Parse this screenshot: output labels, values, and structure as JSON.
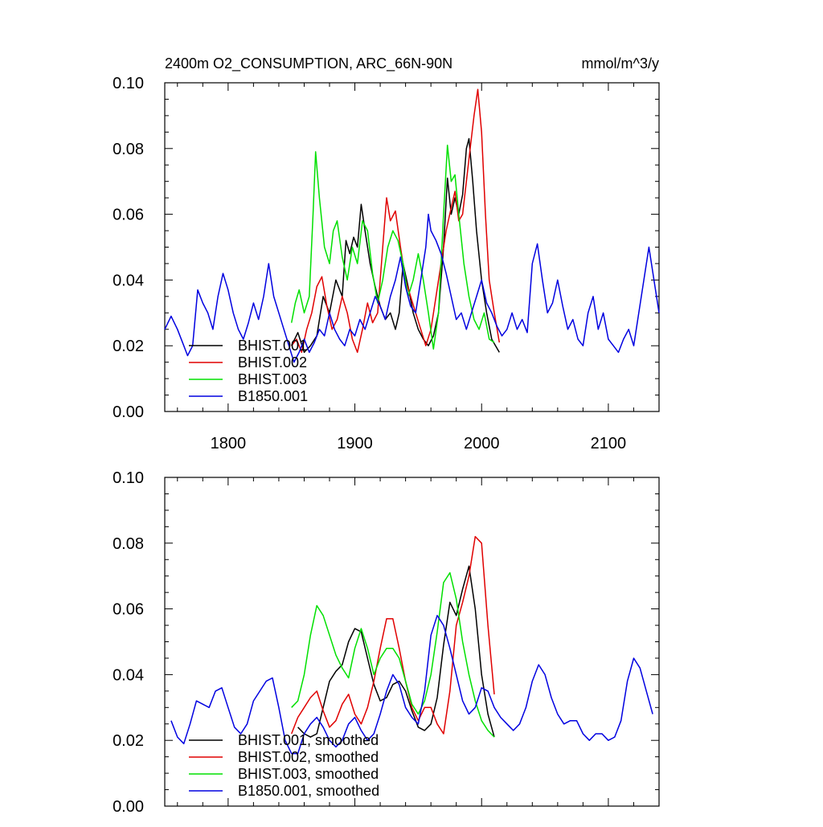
{
  "chart_data": [
    {
      "type": "line",
      "title": "2400m O2_CONSUMPTION, ARC_66N-90N",
      "units": "mmol/m^3/y",
      "xlim": [
        1750,
        2140
      ],
      "ylim": [
        0,
        0.1
      ],
      "xticks": [
        1800,
        1900,
        2000,
        2100
      ],
      "xtick_labels": [
        "1800",
        "1900",
        "2000",
        "2100"
      ],
      "yticks": [
        0,
        0.02,
        0.04,
        0.06,
        0.08,
        0.1
      ],
      "ytick_labels": [
        "0.00",
        "0.02",
        "0.04",
        "0.06",
        "0.08",
        "0.10"
      ],
      "legend_position": "bottom-left",
      "series": [
        {
          "name": "BHIST.001",
          "color": "#000000",
          "x": [
            1850,
            1855,
            1860,
            1865,
            1870,
            1875,
            1880,
            1885,
            1890,
            1893,
            1896,
            1899,
            1902,
            1905,
            1908,
            1912,
            1916,
            1920,
            1924,
            1928,
            1932,
            1935,
            1938,
            1942,
            1946,
            1950,
            1954,
            1958,
            1962,
            1966,
            1970,
            1973,
            1976,
            1979,
            1982,
            1985,
            1988,
            1990,
            1993,
            1996,
            2000,
            2004,
            2008,
            2014
          ],
          "y": [
            0.02,
            0.024,
            0.018,
            0.02,
            0.023,
            0.035,
            0.03,
            0.04,
            0.035,
            0.052,
            0.048,
            0.053,
            0.05,
            0.063,
            0.055,
            0.045,
            0.038,
            0.032,
            0.028,
            0.03,
            0.025,
            0.03,
            0.045,
            0.038,
            0.03,
            0.025,
            0.022,
            0.02,
            0.023,
            0.03,
            0.05,
            0.071,
            0.06,
            0.065,
            0.06,
            0.066,
            0.08,
            0.083,
            0.07,
            0.055,
            0.04,
            0.03,
            0.022,
            0.018
          ]
        },
        {
          "name": "BHIST.002",
          "color": "#e00000",
          "x": [
            1850,
            1854,
            1858,
            1862,
            1866,
            1870,
            1874,
            1878,
            1882,
            1886,
            1890,
            1894,
            1898,
            1902,
            1906,
            1910,
            1914,
            1918,
            1922,
            1925,
            1928,
            1932,
            1936,
            1940,
            1944,
            1948,
            1952,
            1956,
            1960,
            1964,
            1968,
            1972,
            1976,
            1979,
            1982,
            1985,
            1988,
            1991,
            1994,
            1997,
            2000,
            2003,
            2006,
            2010,
            2014
          ],
          "y": [
            0.02,
            0.022,
            0.018,
            0.025,
            0.03,
            0.038,
            0.041,
            0.032,
            0.025,
            0.028,
            0.035,
            0.03,
            0.022,
            0.018,
            0.025,
            0.033,
            0.027,
            0.03,
            0.05,
            0.065,
            0.058,
            0.061,
            0.05,
            0.04,
            0.035,
            0.03,
            0.025,
            0.02,
            0.025,
            0.035,
            0.045,
            0.055,
            0.062,
            0.067,
            0.058,
            0.06,
            0.07,
            0.08,
            0.09,
            0.098,
            0.085,
            0.06,
            0.04,
            0.03,
            0.021
          ]
        },
        {
          "name": "BHIST.003",
          "color": "#00e000",
          "x": [
            1850,
            1853,
            1856,
            1860,
            1864,
            1867,
            1869,
            1872,
            1876,
            1880,
            1883,
            1886,
            1890,
            1894,
            1898,
            1902,
            1906,
            1910,
            1914,
            1918,
            1922,
            1926,
            1930,
            1934,
            1938,
            1942,
            1946,
            1950,
            1954,
            1958,
            1962,
            1966,
            1970,
            1973,
            1976,
            1979,
            1982,
            1986,
            1990,
            1994,
            1998,
            2002,
            2006,
            2010
          ],
          "y": [
            0.027,
            0.033,
            0.037,
            0.03,
            0.035,
            0.06,
            0.079,
            0.065,
            0.05,
            0.045,
            0.055,
            0.058,
            0.047,
            0.04,
            0.05,
            0.045,
            0.058,
            0.055,
            0.042,
            0.033,
            0.04,
            0.05,
            0.055,
            0.052,
            0.045,
            0.035,
            0.04,
            0.048,
            0.04,
            0.03,
            0.019,
            0.03,
            0.06,
            0.081,
            0.07,
            0.072,
            0.06,
            0.045,
            0.035,
            0.028,
            0.025,
            0.03,
            0.022,
            0.021
          ]
        },
        {
          "name": "B1850.001",
          "color": "#0000e0",
          "x": [
            1750,
            1755,
            1760,
            1765,
            1768,
            1772,
            1776,
            1780,
            1784,
            1788,
            1792,
            1796,
            1800,
            1804,
            1808,
            1812,
            1816,
            1820,
            1824,
            1828,
            1832,
            1836,
            1840,
            1844,
            1848,
            1852,
            1856,
            1860,
            1864,
            1868,
            1872,
            1876,
            1880,
            1884,
            1888,
            1892,
            1896,
            1900,
            1904,
            1908,
            1912,
            1916,
            1920,
            1924,
            1928,
            1932,
            1936,
            1940,
            1944,
            1948,
            1952,
            1956,
            1958,
            1960,
            1964,
            1968,
            1972,
            1976,
            1980,
            1984,
            1988,
            1992,
            1996,
            2000,
            2004,
            2008,
            2012,
            2016,
            2020,
            2024,
            2028,
            2032,
            2036,
            2040,
            2044,
            2048,
            2052,
            2056,
            2060,
            2064,
            2068,
            2072,
            2076,
            2080,
            2084,
            2088,
            2092,
            2096,
            2100,
            2104,
            2108,
            2112,
            2116,
            2120,
            2124,
            2128,
            2132,
            2136,
            2140
          ],
          "y": [
            0.025,
            0.029,
            0.025,
            0.02,
            0.017,
            0.02,
            0.037,
            0.033,
            0.03,
            0.025,
            0.035,
            0.042,
            0.037,
            0.03,
            0.025,
            0.022,
            0.027,
            0.033,
            0.028,
            0.035,
            0.045,
            0.035,
            0.03,
            0.025,
            0.02,
            0.015,
            0.018,
            0.022,
            0.018,
            0.021,
            0.025,
            0.023,
            0.03,
            0.025,
            0.022,
            0.02,
            0.025,
            0.023,
            0.028,
            0.025,
            0.03,
            0.035,
            0.032,
            0.028,
            0.035,
            0.04,
            0.047,
            0.038,
            0.032,
            0.03,
            0.04,
            0.05,
            0.06,
            0.055,
            0.052,
            0.048,
            0.042,
            0.035,
            0.028,
            0.03,
            0.025,
            0.03,
            0.035,
            0.04,
            0.033,
            0.03,
            0.026,
            0.023,
            0.025,
            0.03,
            0.025,
            0.028,
            0.024,
            0.045,
            0.051,
            0.04,
            0.03,
            0.033,
            0.04,
            0.032,
            0.025,
            0.028,
            0.022,
            0.02,
            0.03,
            0.035,
            0.025,
            0.03,
            0.022,
            0.02,
            0.018,
            0.022,
            0.025,
            0.02,
            0.03,
            0.04,
            0.05,
            0.04,
            0.03
          ]
        }
      ]
    },
    {
      "type": "line",
      "title": "",
      "xlim": [
        1750,
        2140
      ],
      "ylim": [
        0,
        0.1
      ],
      "xticks": [
        1800,
        1900,
        2000,
        2100
      ],
      "xtick_labels": [
        "",
        "",
        "",
        ""
      ],
      "yticks": [
        0,
        0.02,
        0.04,
        0.06,
        0.08,
        0.1
      ],
      "ytick_labels": [
        "0.00",
        "0.02",
        "0.04",
        "0.06",
        "0.08",
        "0.10"
      ],
      "legend_position": "bottom-left",
      "series": [
        {
          "name": "BHIST.001, smoothed",
          "color": "#000000",
          "x": [
            1855,
            1860,
            1865,
            1870,
            1875,
            1880,
            1885,
            1890,
            1895,
            1900,
            1905,
            1910,
            1915,
            1920,
            1925,
            1930,
            1935,
            1940,
            1945,
            1950,
            1955,
            1960,
            1965,
            1970,
            1975,
            1980,
            1985,
            1990,
            1995,
            2000,
            2005,
            2010
          ],
          "y": [
            0.024,
            0.022,
            0.021,
            0.022,
            0.03,
            0.038,
            0.041,
            0.043,
            0.05,
            0.054,
            0.053,
            0.045,
            0.037,
            0.032,
            0.033,
            0.037,
            0.038,
            0.035,
            0.029,
            0.024,
            0.023,
            0.025,
            0.033,
            0.049,
            0.062,
            0.058,
            0.066,
            0.073,
            0.06,
            0.04,
            0.028,
            0.021
          ]
        },
        {
          "name": "BHIST.002, smoothed",
          "color": "#e00000",
          "x": [
            1850,
            1855,
            1860,
            1865,
            1870,
            1875,
            1880,
            1885,
            1890,
            1895,
            1900,
            1905,
            1910,
            1915,
            1920,
            1925,
            1930,
            1935,
            1940,
            1945,
            1950,
            1955,
            1960,
            1965,
            1970,
            1975,
            1980,
            1985,
            1990,
            1995,
            2000,
            2005,
            2010
          ],
          "y": [
            0.022,
            0.027,
            0.03,
            0.033,
            0.035,
            0.029,
            0.024,
            0.026,
            0.031,
            0.034,
            0.028,
            0.025,
            0.03,
            0.038,
            0.048,
            0.057,
            0.057,
            0.048,
            0.038,
            0.03,
            0.026,
            0.03,
            0.03,
            0.025,
            0.022,
            0.035,
            0.055,
            0.062,
            0.07,
            0.082,
            0.08,
            0.055,
            0.034
          ]
        },
        {
          "name": "BHIST.003, smoothed",
          "color": "#00e000",
          "x": [
            1850,
            1855,
            1860,
            1865,
            1870,
            1875,
            1880,
            1885,
            1890,
            1895,
            1900,
            1905,
            1910,
            1915,
            1920,
            1925,
            1930,
            1935,
            1940,
            1945,
            1950,
            1955,
            1960,
            1965,
            1970,
            1975,
            1980,
            1985,
            1990,
            1995,
            2000,
            2005,
            2010
          ],
          "y": [
            0.03,
            0.032,
            0.04,
            0.052,
            0.061,
            0.058,
            0.052,
            0.046,
            0.042,
            0.039,
            0.048,
            0.054,
            0.048,
            0.04,
            0.045,
            0.048,
            0.048,
            0.045,
            0.038,
            0.031,
            0.028,
            0.032,
            0.04,
            0.053,
            0.068,
            0.071,
            0.063,
            0.05,
            0.04,
            0.032,
            0.026,
            0.023,
            0.021
          ]
        },
        {
          "name": "B1850.001, smoothed",
          "color": "#0000e0",
          "x": [
            1755,
            1760,
            1765,
            1770,
            1775,
            1780,
            1785,
            1790,
            1795,
            1800,
            1805,
            1810,
            1815,
            1820,
            1825,
            1830,
            1835,
            1840,
            1845,
            1850,
            1855,
            1860,
            1865,
            1870,
            1875,
            1880,
            1885,
            1890,
            1895,
            1900,
            1905,
            1910,
            1915,
            1920,
            1925,
            1930,
            1935,
            1940,
            1945,
            1950,
            1955,
            1960,
            1965,
            1970,
            1975,
            1980,
            1985,
            1990,
            1995,
            2000,
            2005,
            2010,
            2015,
            2020,
            2025,
            2030,
            2035,
            2040,
            2045,
            2050,
            2055,
            2060,
            2065,
            2070,
            2075,
            2080,
            2085,
            2090,
            2095,
            2100,
            2105,
            2110,
            2115,
            2120,
            2125,
            2130,
            2135
          ],
          "y": [
            0.026,
            0.021,
            0.019,
            0.025,
            0.032,
            0.031,
            0.03,
            0.035,
            0.036,
            0.03,
            0.024,
            0.022,
            0.025,
            0.032,
            0.035,
            0.038,
            0.039,
            0.03,
            0.02,
            0.016,
            0.016,
            0.022,
            0.025,
            0.027,
            0.024,
            0.02,
            0.018,
            0.02,
            0.025,
            0.027,
            0.023,
            0.02,
            0.022,
            0.028,
            0.035,
            0.04,
            0.037,
            0.03,
            0.027,
            0.025,
            0.035,
            0.052,
            0.058,
            0.055,
            0.048,
            0.04,
            0.032,
            0.028,
            0.03,
            0.036,
            0.035,
            0.03,
            0.027,
            0.025,
            0.023,
            0.025,
            0.03,
            0.038,
            0.043,
            0.04,
            0.033,
            0.028,
            0.025,
            0.026,
            0.026,
            0.022,
            0.02,
            0.022,
            0.022,
            0.02,
            0.021,
            0.026,
            0.038,
            0.045,
            0.042,
            0.035,
            0.028
          ]
        }
      ]
    }
  ]
}
